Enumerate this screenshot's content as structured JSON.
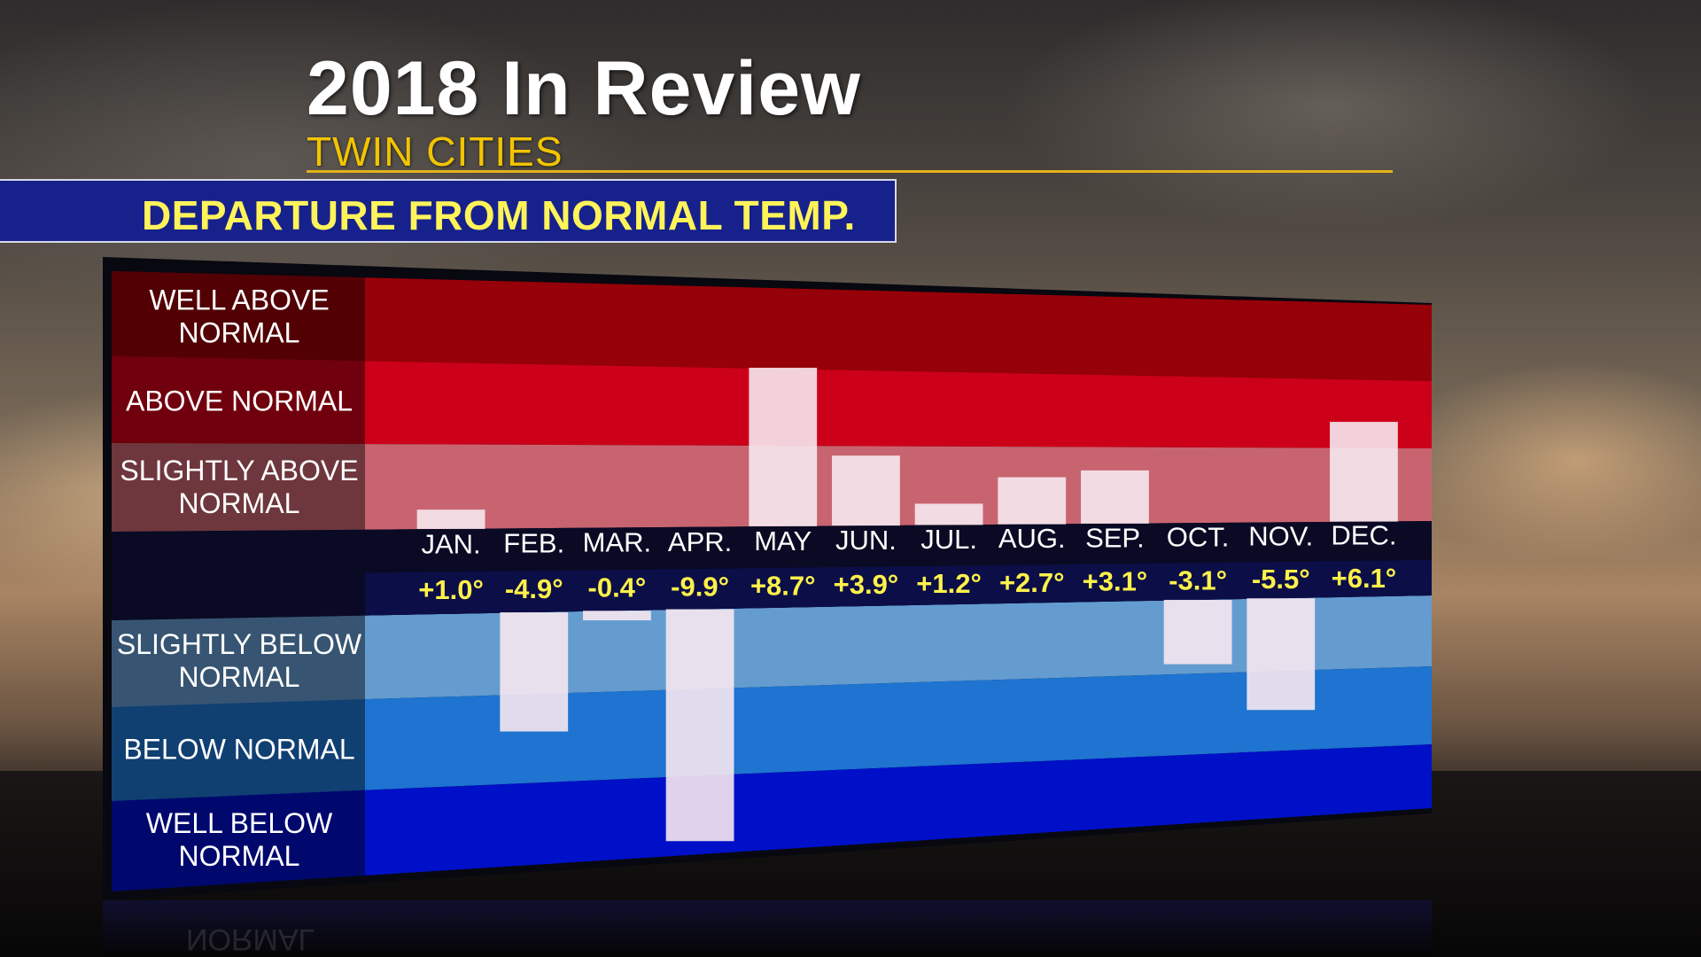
{
  "header": {
    "title": "2018 In Review",
    "subtitle": "TWIN CITIES",
    "banner": "DEPARTURE FROM NORMAL TEMP."
  },
  "bands": {
    "well_above": [
      "WELL ABOVE",
      "NORMAL"
    ],
    "above": [
      "ABOVE NORMAL"
    ],
    "slightly_above": [
      "SLIGHTLY ABOVE",
      "NORMAL"
    ],
    "slightly_below": [
      "SLIGHTLY BELOW",
      "NORMAL"
    ],
    "below": [
      "BELOW NORMAL"
    ],
    "well_below": [
      "WELL BELOW",
      "NORMAL"
    ]
  },
  "colors": {
    "well_above": "#960008",
    "above": "#cc0018",
    "slightly_above": "#c86470",
    "slightly_below": "#649cd0",
    "below": "#1e74d0",
    "well_below": "#0010c8",
    "bar": "#f6e8f0",
    "value_text": "#fff24a"
  },
  "chart_data": {
    "type": "bar",
    "categories": [
      "JAN.",
      "FEB.",
      "MAR.",
      "APR.",
      "MAY",
      "JUN.",
      "JUL.",
      "AUG.",
      "SEP.",
      "OCT.",
      "NOV.",
      "DEC."
    ],
    "values": [
      1.0,
      -4.9,
      -0.4,
      -9.9,
      8.7,
      3.9,
      1.2,
      2.7,
      3.1,
      -3.1,
      -5.5,
      6.1
    ],
    "value_labels": [
      "+1.0°",
      "-4.9°",
      "-0.4°",
      "-9.9°",
      "+8.7°",
      "+3.9°",
      "+1.2°",
      "+2.7°",
      "+3.1°",
      "-3.1°",
      "-5.5°",
      "+6.1°"
    ],
    "title": "DEPARTURE FROM NORMAL TEMP.",
    "ylim": [
      -10,
      10
    ]
  }
}
